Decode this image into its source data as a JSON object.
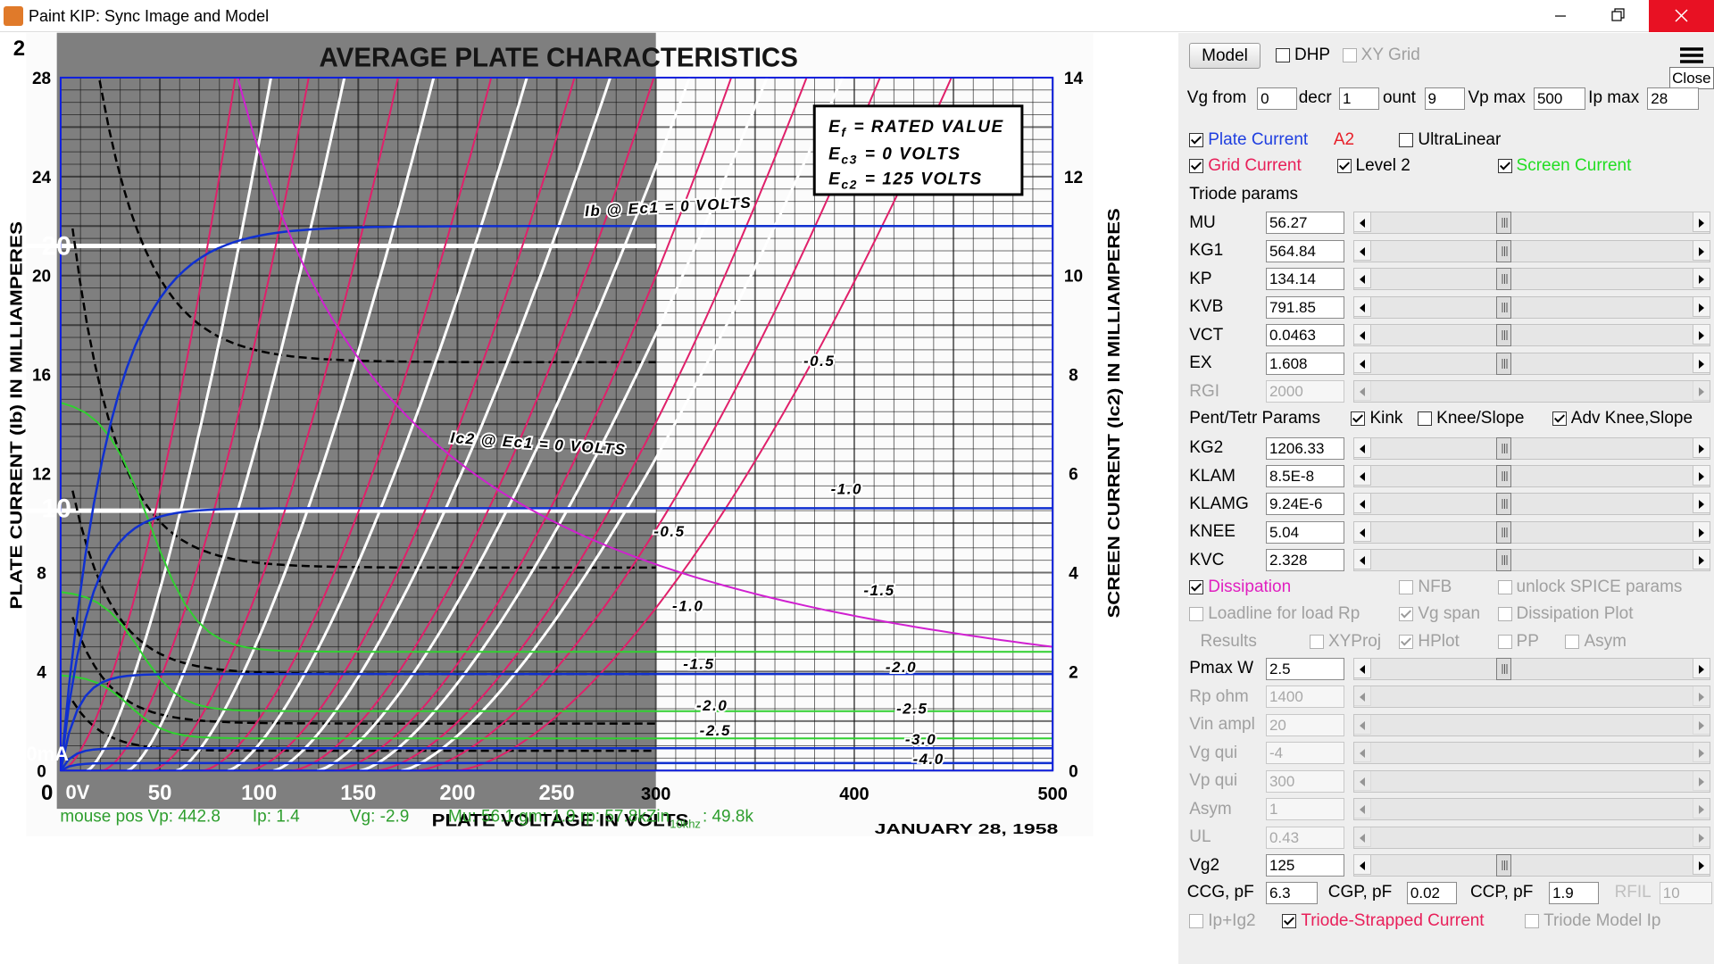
{
  "window": {
    "title": "Paint KIP: Sync Image and Model"
  },
  "plot": {
    "page_mark": "2",
    "title": "AVERAGE PLATE CHARACTERISTICS",
    "y_label": "PLATE CURRENT (Ib) IN MILLIAMPERES",
    "y2_label": "SCREEN CURRENT (Ic2) IN MILLIAMPERES",
    "x_label": "PLATE VOLTAGE IN VOLTS",
    "date": "JANUARY 28, 1958",
    "xticks": [
      0,
      50,
      100,
      150,
      200,
      250,
      300,
      400,
      500
    ],
    "yticks": [
      0,
      4,
      8,
      12,
      16,
      20,
      24,
      28
    ],
    "y2ticks": [
      0,
      2,
      4,
      6,
      8,
      10,
      12,
      14
    ],
    "overlay_labels": [
      "0V",
      "0mA",
      "20",
      "10"
    ],
    "conditions": [
      {
        "symbol": "E",
        "sub": "f",
        "text": "= RATED VALUE"
      },
      {
        "symbol": "E",
        "sub": "c3",
        "text": "= 0 VOLTS"
      },
      {
        "symbol": "E",
        "sub": "c2",
        "text": "= 125 VOLTS"
      }
    ],
    "curve_labels": [
      "Ib @ Ec1 = 0 VOLTS",
      "Ic2 @ Ec1 = 0 VOLTS",
      "-0.5",
      "-1.0",
      "-0.5",
      "-1.0",
      "-1.5",
      "-1.5",
      "-2.0",
      "-2.0",
      "-2.5",
      "-2.5",
      "-3.0",
      "-4.0"
    ]
  },
  "status": {
    "vp": "mouse pos Vp: 442.8",
    "ip": "Ip: 1.4",
    "vg": "Vg: -2.9",
    "params": "Mu: 56.1  gm: 1.9  rp: 57.8k",
    "zin": "Zin",
    "zin_sub": "10khz",
    "zin_value": ": 49.8k"
  },
  "controls": {
    "model_button": "Model",
    "view_options": [
      {
        "label": "DHP",
        "checked": false
      },
      {
        "label": "XY Grid",
        "checked": false,
        "disabled": true
      }
    ],
    "menu_tooltip": "Close",
    "sweep": [
      {
        "label": "Vg from",
        "value": "0"
      },
      {
        "label": "decr",
        "value": "1"
      },
      {
        "label": "ount",
        "value": "9"
      },
      {
        "label": "Vp max",
        "value": "500"
      },
      {
        "label": "Ip max",
        "value": "28"
      }
    ],
    "option_rows": [
      [
        {
          "label": "Plate Current",
          "checked": true,
          "color": "#1f3fe0"
        },
        {
          "label": "A2",
          "color": "#e8202a"
        },
        {
          "label": "UltraLinear",
          "checked": false
        }
      ],
      [
        {
          "label": "Grid Current",
          "checked": true,
          "color": "#e8205a"
        },
        {
          "label": "Level 2",
          "checked": true
        },
        {
          "label": "Screen Current",
          "checked": true,
          "color": "#22dd22"
        }
      ]
    ],
    "triode_heading": "Triode params",
    "triode_params": [
      {
        "label": "MU",
        "value": "56.27"
      },
      {
        "label": "KG1",
        "value": "564.84"
      },
      {
        "label": "KP",
        "value": "134.14"
      },
      {
        "label": "KVB",
        "value": "791.85"
      },
      {
        "label": "VCT",
        "value": "0.0463"
      },
      {
        "label": "EX",
        "value": "1.608"
      },
      {
        "label": "RGI",
        "value": "2000",
        "disabled": true
      }
    ],
    "pentode_heading": "Pent/Tetr Params",
    "pentode_options": [
      {
        "label": "Kink",
        "checked": true
      },
      {
        "label": "Knee/Slope",
        "checked": false
      },
      {
        "label": "Adv Knee,Slope",
        "checked": true
      }
    ],
    "pentode_params": [
      {
        "label": "KG2",
        "value": "1206.33"
      },
      {
        "label": "KLAM",
        "value": "8.5E-8"
      },
      {
        "label": "KLAMG",
        "value": "9.24E-6"
      },
      {
        "label": "KNEE",
        "value": "5.04"
      },
      {
        "label": "KVC",
        "value": "2.328"
      }
    ],
    "analysis_rows": [
      [
        {
          "label": "Dissipation",
          "checked": true,
          "color": "#e020c0"
        },
        {
          "label": "NFB",
          "checked": false,
          "disabled": true
        },
        {
          "label": "unlock SPICE params",
          "checked": false,
          "disabled": true
        }
      ],
      [
        {
          "label": "Loadline for load Rp",
          "checked": false,
          "disabled": true
        },
        {
          "label": "Vg span",
          "checked": true,
          "disabled": true
        },
        {
          "label": "Dissipation Plot",
          "checked": false,
          "disabled": true
        }
      ],
      [
        {
          "label": "Results",
          "disabled": true
        },
        {
          "label": "XYProj",
          "checked": false,
          "disabled": true
        },
        {
          "label": "HPlot",
          "checked": true,
          "disabled": true
        },
        {
          "label": "PP",
          "checked": false,
          "disabled": true
        },
        {
          "label": "Asym",
          "checked": false,
          "disabled": true
        }
      ]
    ],
    "load_params": [
      {
        "label": "Pmax W",
        "value": "2.5"
      },
      {
        "label": "Rp ohm",
        "value": "1400",
        "disabled": true
      },
      {
        "label": "Vin ampl",
        "value": "20",
        "disabled": true
      },
      {
        "label": "Vg qui",
        "value": "-4",
        "disabled": true
      },
      {
        "label": "Vp qui",
        "value": "300",
        "disabled": true
      },
      {
        "label": "Asym",
        "value": "1",
        "disabled": true
      },
      {
        "label": "UL",
        "value": "0.43",
        "disabled": true
      },
      {
        "label": "Vg2",
        "value": "125"
      }
    ],
    "capacitances": [
      {
        "label": "CCG, pF",
        "value": "6.3"
      },
      {
        "label": "CGP, pF",
        "value": "0.02"
      },
      {
        "label": "CCP, pF",
        "value": "1.9"
      },
      {
        "label": "RFIL",
        "value": "10",
        "disabled": true
      }
    ],
    "bottom_options": [
      {
        "label": "Ip+Ig2",
        "checked": false,
        "disabled": true
      },
      {
        "label": "Triode-Strapped Current",
        "checked": true,
        "color": "#e8205a"
      },
      {
        "label": "Triode Model Ip",
        "checked": false,
        "disabled": true
      }
    ]
  }
}
